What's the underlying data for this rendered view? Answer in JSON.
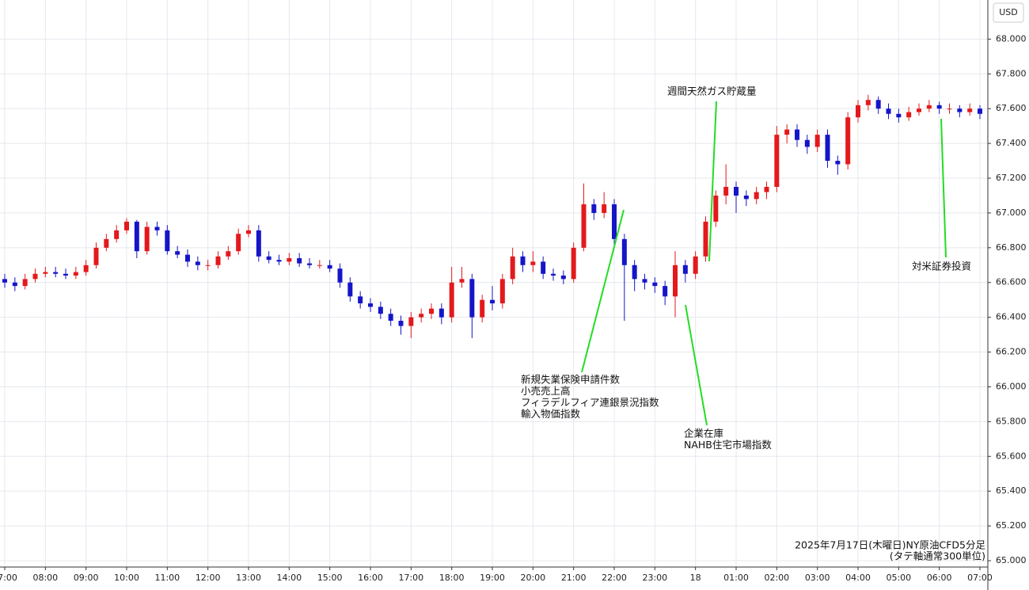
{
  "chart_data": {
    "type": "candlestick",
    "currency": "USD",
    "footer": [
      "2025年7月17日(木曜日)NY原油CFD5分足",
      "(タテ軸通常300単位)"
    ],
    "annotations": [
      {
        "lines": [
          "週間天然ガス貯蔵量"
        ]
      },
      {
        "lines": [
          "新規失業保険申請件数",
          "小売売上高",
          "フィラデルフィア連銀景況指数",
          "輸入物価指数"
        ]
      },
      {
        "lines": [
          "企業在庫",
          "NAHB住宅市場指数"
        ]
      },
      {
        "lines": [
          "対米証券投資"
        ]
      }
    ],
    "up_color": "#e3191c",
    "down_color": "#1515c8",
    "grid": true,
    "xlim": [
      0,
      96
    ],
    "xticks": [
      {
        "value": 0,
        "label": "07:00"
      },
      {
        "value": 4,
        "label": "08:00"
      },
      {
        "value": 8,
        "label": "09:00"
      },
      {
        "value": 12,
        "label": "10:00"
      },
      {
        "value": 16,
        "label": "11:00"
      },
      {
        "value": 20,
        "label": "12:00"
      },
      {
        "value": 24,
        "label": "13:00"
      },
      {
        "value": 28,
        "label": "14:00"
      },
      {
        "value": 32,
        "label": "15:00"
      },
      {
        "value": 36,
        "label": "16:00"
      },
      {
        "value": 40,
        "label": "17:00"
      },
      {
        "value": 44,
        "label": "18:00"
      },
      {
        "value": 48,
        "label": "19:00"
      },
      {
        "value": 52,
        "label": "20:00"
      },
      {
        "value": 56,
        "label": "21:00"
      },
      {
        "value": 60,
        "label": "22:00"
      },
      {
        "value": 64,
        "label": "23:00"
      },
      {
        "value": 68,
        "label": "18"
      },
      {
        "value": 72,
        "label": "01:00"
      },
      {
        "value": 76,
        "label": "02:00"
      },
      {
        "value": 80,
        "label": "03:00"
      },
      {
        "value": 84,
        "label": "04:00"
      },
      {
        "value": 88,
        "label": "05:00"
      },
      {
        "value": 92,
        "label": "06:00"
      },
      {
        "value": 96,
        "label": "07:00"
      }
    ],
    "ylim": [
      65.0,
      68.07
    ],
    "yticks": [
      {
        "value": 65.0,
        "label": "65.000"
      },
      {
        "value": 65.2,
        "label": "65.200"
      },
      {
        "value": 65.4,
        "label": "65.400"
      },
      {
        "value": 65.6,
        "label": "65.600"
      },
      {
        "value": 65.8,
        "label": "65.800"
      },
      {
        "value": 66.0,
        "label": "66.000"
      },
      {
        "value": 66.2,
        "label": "66.200"
      },
      {
        "value": 66.4,
        "label": "66.400"
      },
      {
        "value": 66.6,
        "label": "66.600"
      },
      {
        "value": 66.8,
        "label": "66.800"
      },
      {
        "value": 67.0,
        "label": "67.000"
      },
      {
        "value": 67.2,
        "label": "67.200"
      },
      {
        "value": 67.4,
        "label": "67.400"
      },
      {
        "value": 67.6,
        "label": "67.600"
      },
      {
        "value": 67.8,
        "label": "67.800"
      },
      {
        "value": 68.0,
        "label": "68.000"
      }
    ],
    "open": [
      66.62,
      66.6,
      66.58,
      66.62,
      66.65,
      66.66,
      66.65,
      66.64,
      66.66,
      66.7,
      66.8,
      66.85,
      66.9,
      66.95,
      66.78,
      66.92,
      66.9,
      66.78,
      66.76,
      66.72,
      66.7,
      66.7,
      66.75,
      66.78,
      66.88,
      66.9,
      66.75,
      66.73,
      66.72,
      66.74,
      66.71,
      66.7,
      66.7,
      66.68,
      66.6,
      66.52,
      66.48,
      66.46,
      66.42,
      66.38,
      66.35,
      66.4,
      66.42,
      66.45,
      66.4,
      66.6,
      66.62,
      66.4,
      66.5,
      66.48,
      66.62,
      66.75,
      66.7,
      66.72,
      66.65,
      66.64,
      66.62,
      66.8,
      67.05,
      67.0,
      67.05,
      66.85,
      66.7,
      66.62,
      66.6,
      66.58,
      66.52,
      66.7,
      66.65,
      66.75,
      66.95,
      67.1,
      67.15,
      67.1,
      67.08,
      67.12,
      67.15,
      67.45,
      67.48,
      67.42,
      67.38,
      67.45,
      67.3,
      67.28,
      67.55,
      67.62,
      67.65,
      67.6,
      67.57,
      67.55,
      67.58,
      67.6,
      67.62,
      67.6,
      67.6,
      67.58,
      67.6
    ],
    "high": [
      66.65,
      66.63,
      66.65,
      66.68,
      66.69,
      66.69,
      66.68,
      66.69,
      66.73,
      66.83,
      66.88,
      66.93,
      66.97,
      66.96,
      66.95,
      66.95,
      66.93,
      66.81,
      66.79,
      66.75,
      66.73,
      66.78,
      66.81,
      66.91,
      66.93,
      66.93,
      66.78,
      66.76,
      66.77,
      66.77,
      66.74,
      66.73,
      66.73,
      66.71,
      66.63,
      66.55,
      66.51,
      66.49,
      66.45,
      66.41,
      66.43,
      66.45,
      66.48,
      66.48,
      66.69,
      66.69,
      66.65,
      66.53,
      66.58,
      66.65,
      66.8,
      66.78,
      66.78,
      66.75,
      66.68,
      66.67,
      66.83,
      67.17,
      67.08,
      67.12,
      67.08,
      66.88,
      66.73,
      66.65,
      66.63,
      66.61,
      66.78,
      66.73,
      66.78,
      66.98,
      67.13,
      67.28,
      67.18,
      67.13,
      67.15,
      67.18,
      67.5,
      67.51,
      67.51,
      67.45,
      67.48,
      67.48,
      67.33,
      67.58,
      67.65,
      67.68,
      67.67,
      67.63,
      67.6,
      67.61,
      67.63,
      67.65,
      67.64,
      67.63,
      67.62,
      67.63,
      67.62
    ],
    "low": [
      66.57,
      66.55,
      66.56,
      66.6,
      66.63,
      66.63,
      66.62,
      66.62,
      66.64,
      66.68,
      66.78,
      66.83,
      66.88,
      66.74,
      66.76,
      66.87,
      66.76,
      66.74,
      66.69,
      66.67,
      66.67,
      66.68,
      66.73,
      66.76,
      66.86,
      66.72,
      66.71,
      66.7,
      66.7,
      66.69,
      66.68,
      66.68,
      66.66,
      66.57,
      66.49,
      66.45,
      66.43,
      66.39,
      66.35,
      66.3,
      66.28,
      66.37,
      66.39,
      66.36,
      66.37,
      66.57,
      66.28,
      66.37,
      66.44,
      66.45,
      66.59,
      66.66,
      66.66,
      66.62,
      66.61,
      66.59,
      66.6,
      66.78,
      66.96,
      66.97,
      66.8,
      66.38,
      66.55,
      66.56,
      66.54,
      66.47,
      66.4,
      66.6,
      66.62,
      66.72,
      66.92,
      67.05,
      67.0,
      67.04,
      67.05,
      67.08,
      67.12,
      67.4,
      67.38,
      67.34,
      67.35,
      67.26,
      67.22,
      67.25,
      67.52,
      67.59,
      67.57,
      67.54,
      67.52,
      67.53,
      67.56,
      67.58,
      67.57,
      67.57,
      67.55,
      67.56,
      67.54
    ],
    "close": [
      66.6,
      66.58,
      66.62,
      66.65,
      66.66,
      66.65,
      66.64,
      66.66,
      66.7,
      66.8,
      66.85,
      66.9,
      66.95,
      66.78,
      66.92,
      66.9,
      66.78,
      66.76,
      66.72,
      66.7,
      66.7,
      66.75,
      66.78,
      66.88,
      66.9,
      66.75,
      66.73,
      66.72,
      66.74,
      66.71,
      66.7,
      66.7,
      66.68,
      66.6,
      66.52,
      66.48,
      66.46,
      66.42,
      66.38,
      66.35,
      66.4,
      66.42,
      66.45,
      66.4,
      66.6,
      66.62,
      66.4,
      66.5,
      66.48,
      66.62,
      66.75,
      66.7,
      66.72,
      66.65,
      66.64,
      66.62,
      66.8,
      67.05,
      67.0,
      67.05,
      66.85,
      66.7,
      66.62,
      66.6,
      66.58,
      66.52,
      66.7,
      66.65,
      66.75,
      66.95,
      67.1,
      67.15,
      67.1,
      67.08,
      67.12,
      67.15,
      67.45,
      67.48,
      67.42,
      67.38,
      67.45,
      67.3,
      67.28,
      67.55,
      67.62,
      67.65,
      67.6,
      67.57,
      67.55,
      67.58,
      67.6,
      67.62,
      67.6,
      67.6,
      67.58,
      67.6,
      67.57
    ]
  }
}
